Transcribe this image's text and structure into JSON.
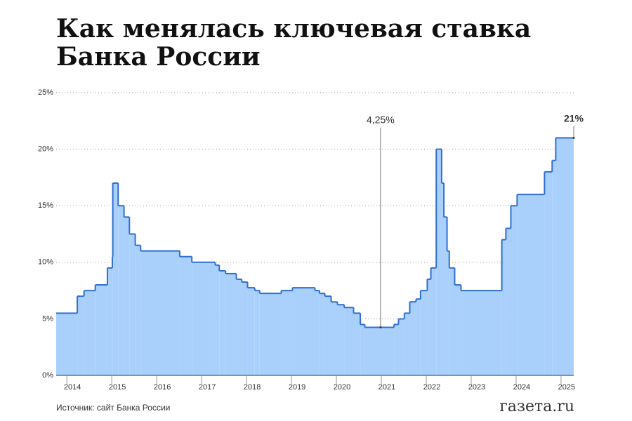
{
  "chart_data": {
    "type": "step",
    "title": [
      "Как менялась ключевая ставка",
      "Банка России"
    ],
    "source": "Источник: сайт Банка России",
    "logo": "газета.ru",
    "series": [
      {
        "name": "Ключевая ставка",
        "color": "#2f6fcf",
        "x": [
          2013.7,
          2014.17,
          2014.32,
          2014.57,
          2014.84,
          2014.95,
          2014.96,
          2015.08,
          2015.21,
          2015.33,
          2015.46,
          2015.58,
          2016.45,
          2016.72,
          2017.24,
          2017.33,
          2017.47,
          2017.71,
          2017.83,
          2017.96,
          2018.12,
          2018.23,
          2018.71,
          2018.96,
          2019.46,
          2019.56,
          2019.68,
          2019.82,
          2019.96,
          2020.11,
          2020.32,
          2020.47,
          2020.57,
          2021.22,
          2021.32,
          2021.45,
          2021.57,
          2021.71,
          2021.81,
          2021.96,
          2022.04,
          2022.16,
          2022.28,
          2022.33,
          2022.4,
          2022.45,
          2022.57,
          2022.71,
          2023.62,
          2023.71,
          2023.82,
          2023.96,
          2024.57,
          2024.74,
          2024.82,
          2025.22
        ],
        "values": [
          5.5,
          7,
          7.5,
          8,
          9.5,
          10.5,
          17,
          15,
          14,
          12.5,
          11.5,
          11,
          10.5,
          10,
          9.75,
          9.25,
          9,
          8.5,
          8.25,
          7.75,
          7.5,
          7.25,
          7.5,
          7.75,
          7.5,
          7.25,
          7,
          6.5,
          6.25,
          6,
          5.5,
          4.5,
          4.25,
          4.5,
          5,
          5.5,
          6.5,
          6.75,
          7.5,
          8.5,
          9.5,
          20,
          17,
          14,
          11,
          9.5,
          8,
          7.5,
          12,
          13,
          15,
          16,
          18,
          19,
          21,
          21
        ]
      }
    ],
    "annotations": [
      {
        "text": "4,25%",
        "x": 2020.92,
        "y": 4.25
      },
      {
        "text": "21%",
        "x": 2025.22,
        "y": 21
      }
    ],
    "xlim": [
      2013.7,
      2025.22
    ],
    "xticks": [
      2014,
      2015,
      2016,
      2017,
      2018,
      2019,
      2020,
      2021,
      2022,
      2023,
      2024,
      2025
    ],
    "ylim": [
      0,
      25
    ],
    "yticks": [
      {
        "value": 0,
        "label": "0%"
      },
      {
        "value": 5,
        "label": "5%"
      },
      {
        "value": 10,
        "label": "10%"
      },
      {
        "value": 15,
        "label": "15%"
      },
      {
        "value": 20,
        "label": "20%"
      },
      {
        "value": 25,
        "label": "25%"
      }
    ],
    "grid": true,
    "fill_color": "#a9d0fb"
  }
}
